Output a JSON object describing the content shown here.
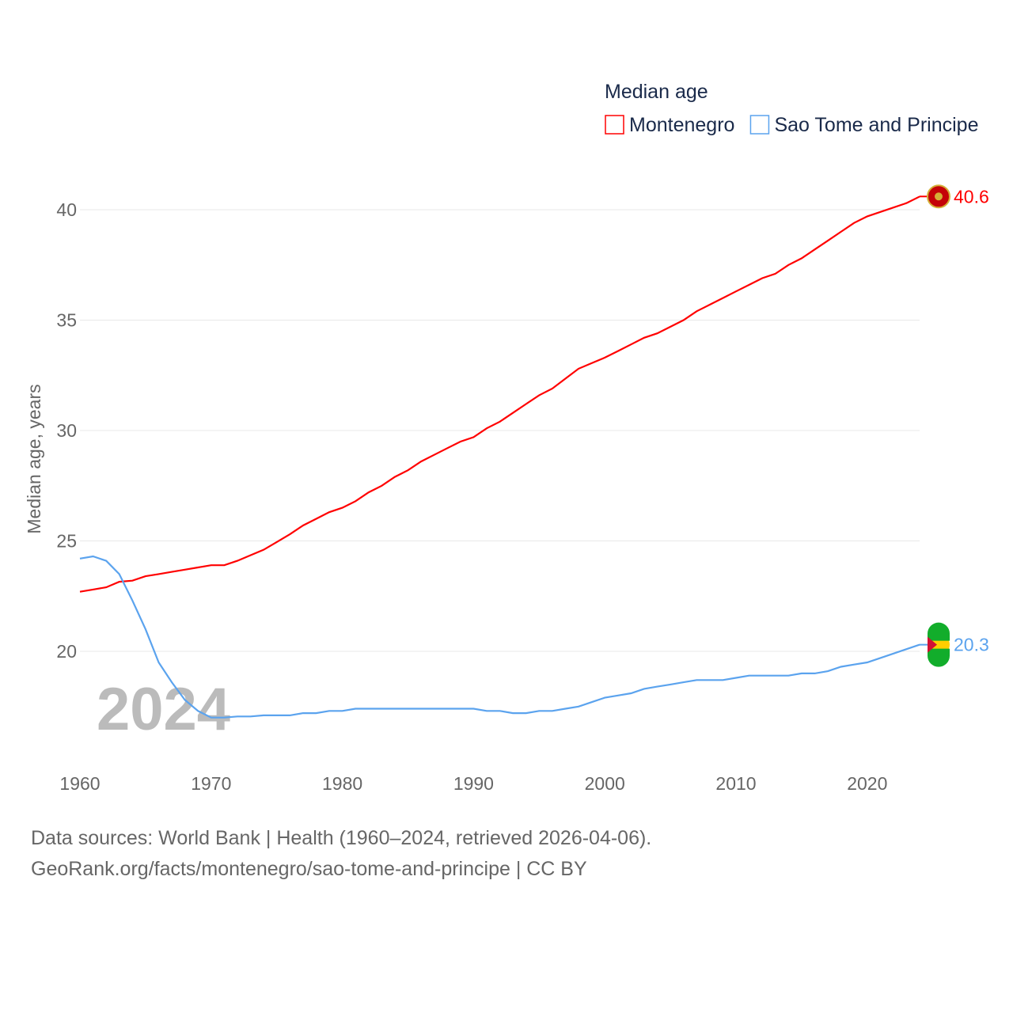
{
  "chart_data": {
    "type": "line",
    "title": "Median age",
    "ylabel": "Median age, years",
    "xlabel": "",
    "ylim": [
      15,
      42
    ],
    "xlim": [
      1960,
      2024
    ],
    "yticks": [
      20,
      25,
      30,
      35,
      40
    ],
    "xticks": [
      1960,
      1970,
      1980,
      1990,
      2000,
      2010,
      2020
    ],
    "year_watermark": "2024",
    "x": [
      1960,
      1961,
      1962,
      1963,
      1964,
      1965,
      1966,
      1967,
      1968,
      1969,
      1970,
      1971,
      1972,
      1973,
      1974,
      1975,
      1976,
      1977,
      1978,
      1979,
      1980,
      1981,
      1982,
      1983,
      1984,
      1985,
      1986,
      1987,
      1988,
      1989,
      1990,
      1991,
      1992,
      1993,
      1994,
      1995,
      1996,
      1997,
      1998,
      1999,
      2000,
      2001,
      2002,
      2003,
      2004,
      2005,
      2006,
      2007,
      2008,
      2009,
      2010,
      2011,
      2012,
      2013,
      2014,
      2015,
      2016,
      2017,
      2018,
      2019,
      2020,
      2021,
      2022,
      2023,
      2024
    ],
    "series": [
      {
        "name": "Montenegro",
        "color": "#ff0000",
        "end_label": "40.6",
        "values": [
          22.7,
          22.8,
          22.9,
          23.15,
          23.2,
          23.4,
          23.5,
          23.6,
          23.7,
          23.8,
          23.9,
          23.9,
          24.1,
          24.35,
          24.6,
          24.95,
          25.3,
          25.7,
          26.0,
          26.3,
          26.5,
          26.8,
          27.2,
          27.5,
          27.9,
          28.2,
          28.6,
          28.9,
          29.2,
          29.5,
          29.7,
          30.1,
          30.4,
          30.8,
          31.2,
          31.6,
          31.9,
          32.35,
          32.8,
          33.05,
          33.3,
          33.6,
          33.9,
          34.2,
          34.4,
          34.7,
          35.0,
          35.4,
          35.7,
          36.0,
          36.3,
          36.6,
          36.9,
          37.1,
          37.5,
          37.8,
          38.2,
          38.6,
          39.0,
          39.4,
          39.7,
          39.9,
          40.1,
          40.3,
          40.6
        ]
      },
      {
        "name": "Sao Tome and Principe",
        "color": "#5ba3ee",
        "end_label": "20.3",
        "values": [
          24.2,
          24.3,
          24.1,
          23.5,
          22.3,
          21.0,
          19.5,
          18.6,
          17.8,
          17.3,
          17.0,
          17.0,
          17.05,
          17.05,
          17.1,
          17.1,
          17.1,
          17.2,
          17.2,
          17.3,
          17.3,
          17.4,
          17.4,
          17.4,
          17.4,
          17.4,
          17.4,
          17.4,
          17.4,
          17.4,
          17.4,
          17.3,
          17.3,
          17.2,
          17.2,
          17.3,
          17.3,
          17.4,
          17.5,
          17.7,
          17.9,
          18.0,
          18.1,
          18.3,
          18.4,
          18.5,
          18.6,
          18.7,
          18.7,
          18.7,
          18.8,
          18.9,
          18.9,
          18.9,
          18.9,
          19.0,
          19.0,
          19.1,
          19.3,
          19.4,
          19.5,
          19.7,
          19.9,
          20.1,
          20.3
        ]
      }
    ]
  },
  "source_line1": "Data sources: World Bank | Health (1960–2024, retrieved 2026-04-06).",
  "source_line2": "GeoRank.org/facts/montenegro/sao-tome-and-principe | CC BY"
}
